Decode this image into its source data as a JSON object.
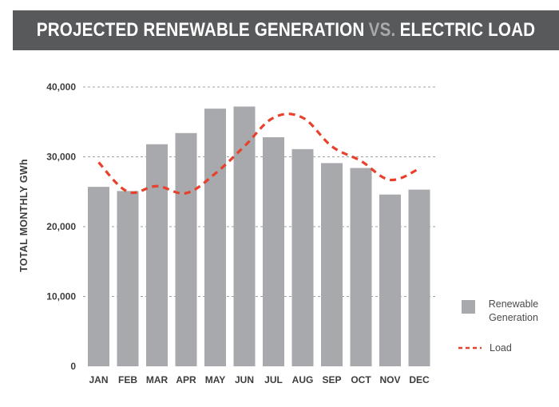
{
  "title": {
    "main": "PROJECTED RENEWABLE GENERATION",
    "vs": "VS.",
    "end": "ELECTRIC LOAD"
  },
  "chart_data": {
    "type": "bar",
    "title": "PROJECTED RENEWABLE GENERATION VS. ELECTRIC LOAD",
    "categories": [
      "JAN",
      "FEB",
      "MAR",
      "APR",
      "MAY",
      "JUN",
      "JUL",
      "AUG",
      "SEP",
      "OCT",
      "NOV",
      "DEC"
    ],
    "series": [
      {
        "name": "Renewable Generation",
        "kind": "bar",
        "color": "#a7a9ac",
        "values": [
          25700,
          25100,
          31800,
          33400,
          36900,
          37200,
          32800,
          31100,
          29100,
          28400,
          24600,
          25300
        ]
      },
      {
        "name": "Load",
        "kind": "line",
        "style": "dashed",
        "color": "#e8402a",
        "values": [
          29200,
          25000,
          25800,
          24800,
          27600,
          31500,
          35600,
          35600,
          31500,
          29400,
          26700,
          28300
        ]
      }
    ],
    "ylabel": "TOTAL MONTHLY GWh",
    "ylim": [
      0,
      40000
    ],
    "yticks": [
      0,
      10000,
      20000,
      30000,
      40000
    ],
    "ytick_labels": [
      "0",
      "10,000",
      "20,000",
      "30,000",
      "40,000"
    ],
    "grid": true,
    "legend_position": "right",
    "legend": [
      {
        "label_line1": "Renewable",
        "label_line2": "Generation"
      },
      {
        "label_line1": "Load",
        "label_line2": ""
      }
    ]
  }
}
